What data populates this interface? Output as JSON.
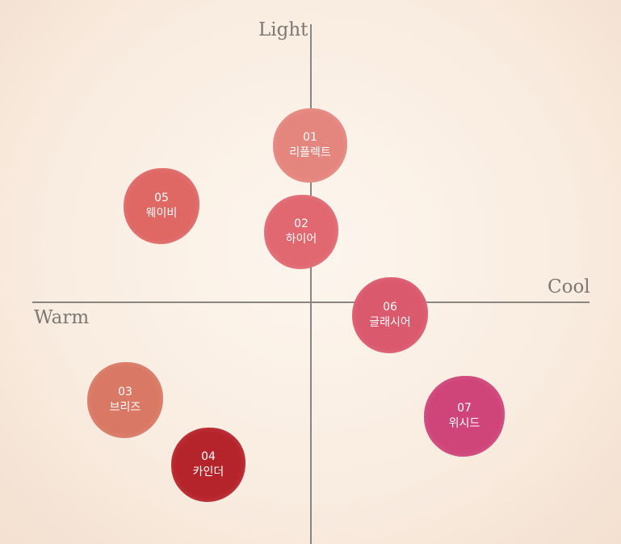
{
  "axes": {
    "top": "Light",
    "right": "Cool",
    "left": "Warm"
  },
  "nodes": [
    {
      "number": "01",
      "label": "리플렉트",
      "color": "#e5867e"
    },
    {
      "number": "02",
      "label": "하이어",
      "color": "#e16871"
    },
    {
      "number": "03",
      "label": "브리즈",
      "color": "#d97965"
    },
    {
      "number": "04",
      "label": "카인더",
      "color": "#b6242b"
    },
    {
      "number": "05",
      "label": "웨이비",
      "color": "#df6865"
    },
    {
      "number": "06",
      "label": "글래시어",
      "color": "#db596d"
    },
    {
      "number": "07",
      "label": "위시드",
      "color": "#cf4579"
    }
  ]
}
